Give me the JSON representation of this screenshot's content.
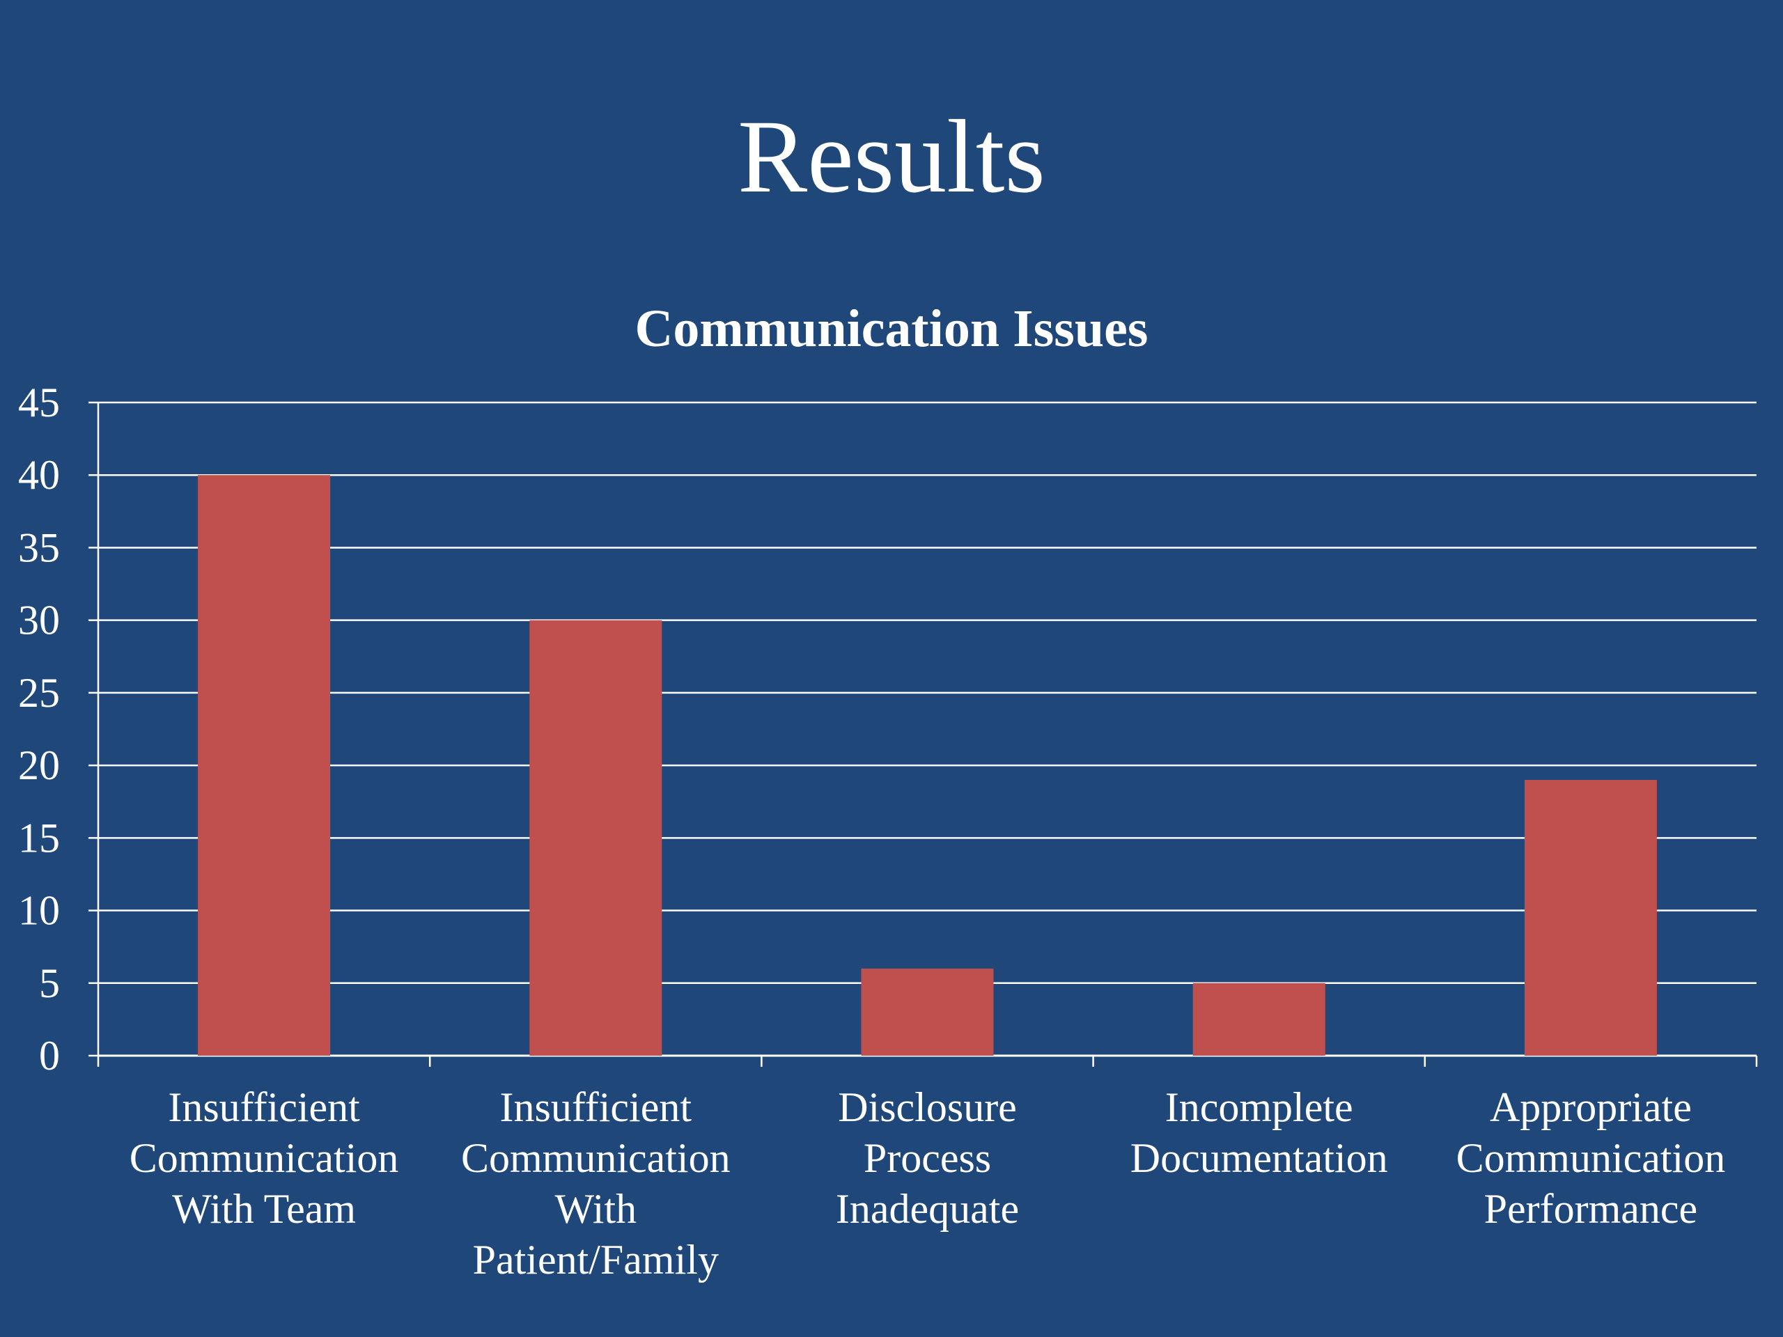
{
  "slide": {
    "title": "Results"
  },
  "colors": {
    "background": "#1f477a",
    "bar": "#c0504d",
    "grid": "#ffffff",
    "text": "#ffffff"
  },
  "chart_data": {
    "type": "bar",
    "title": "Communication Issues",
    "xlabel": "",
    "ylabel": "",
    "categories": [
      "Insufficient Communication With Team",
      "Insufficient Communication With Patient/Family",
      "Disclosure Process Inadequate",
      "Incomplete Documentation",
      "Appropriate Communication Performance"
    ],
    "category_lines": [
      [
        "Insufficient",
        "Communication",
        "With Team"
      ],
      [
        "Insufficient",
        "Communication",
        "With",
        "Patient/Family"
      ],
      [
        "Disclosure",
        "Process",
        "Inadequate"
      ],
      [
        "Incomplete",
        "Documentation"
      ],
      [
        "Appropriate",
        "Communication",
        "Performance"
      ]
    ],
    "values": [
      40,
      30,
      6,
      5,
      19
    ],
    "ylim": [
      0,
      45
    ],
    "yticks": [
      0,
      5,
      10,
      15,
      20,
      25,
      30,
      35,
      40,
      45
    ],
    "grid": true,
    "legend": "none"
  }
}
